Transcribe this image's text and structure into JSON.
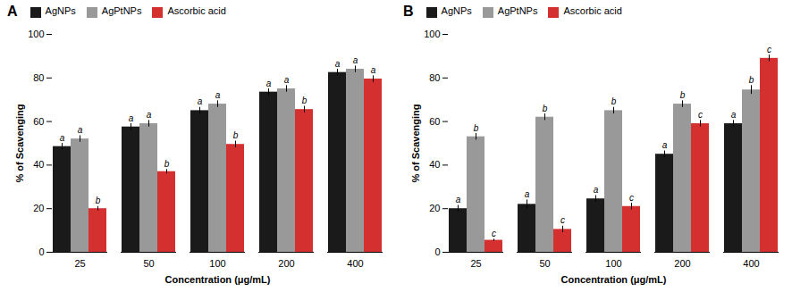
{
  "chart_data": [
    {
      "type": "bar",
      "title": "A",
      "categories": [
        "25",
        "50",
        "100",
        "200",
        "400"
      ],
      "xlabel": "Concentration (μg/mL)",
      "ylabel": "% of Scavenging",
      "series": [
        {
          "name": "AgNPs",
          "color": "#1a1a1a",
          "values": [
            48.5,
            57.5,
            65.0,
            73.5,
            82.5
          ],
          "errors": [
            1.5,
            1.5,
            1.5,
            1.5,
            1.5
          ],
          "letters": [
            "a",
            "a",
            "a",
            "a",
            "a"
          ]
        },
        {
          "name": "AgPtNPs",
          "color": "#999999",
          "values": [
            52.0,
            59.0,
            68.0,
            75.0,
            84.0
          ],
          "errors": [
            1.5,
            1.5,
            1.5,
            1.5,
            1.5
          ],
          "letters": [
            "a",
            "a",
            "a",
            "a",
            "a"
          ]
        },
        {
          "name": "Ascorbic acid",
          "color": "#d43030",
          "values": [
            20.0,
            37.0,
            49.5,
            65.5,
            79.5
          ],
          "errors": [
            1.0,
            1.0,
            1.5,
            1.5,
            1.5
          ],
          "letters": [
            "b",
            "b",
            "b",
            "b",
            "a"
          ]
        }
      ],
      "ylim": [
        0,
        100
      ],
      "yticks": [
        0,
        20,
        40,
        60,
        80,
        100
      ],
      "grid": false,
      "legend": "top"
    },
    {
      "type": "bar",
      "title": "B",
      "categories": [
        "25",
        "50",
        "100",
        "200",
        "400"
      ],
      "xlabel": "Concentration (μg/mL)",
      "ylabel": "% of Scavenging",
      "series": [
        {
          "name": "AgNPs",
          "color": "#1a1a1a",
          "values": [
            20.0,
            22.0,
            24.5,
            45.0,
            59.0
          ],
          "errors": [
            1.5,
            2.0,
            1.5,
            1.5,
            1.5
          ],
          "letters": [
            "a",
            "a",
            "a",
            "a",
            "a"
          ]
        },
        {
          "name": "AgPtNPs",
          "color": "#999999",
          "values": [
            53.0,
            62.0,
            65.0,
            68.0,
            74.5
          ],
          "errors": [
            1.5,
            1.5,
            1.5,
            1.5,
            2.0
          ],
          "letters": [
            "b",
            "b",
            "b",
            "b",
            "b"
          ]
        },
        {
          "name": "Ascorbic acid",
          "color": "#d43030",
          "values": [
            5.5,
            10.5,
            21.0,
            59.0,
            89.0
          ],
          "errors": [
            0.5,
            1.5,
            1.5,
            1.5,
            1.5
          ],
          "letters": [
            "c",
            "c",
            "c",
            "c",
            "c"
          ]
        }
      ],
      "ylim": [
        0,
        100
      ],
      "yticks": [
        0,
        20,
        40,
        60,
        80,
        100
      ],
      "grid": false,
      "legend": "top"
    }
  ]
}
